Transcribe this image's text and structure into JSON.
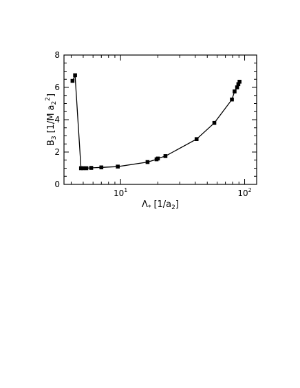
{
  "chart_data": {
    "type": "line",
    "title": "",
    "xlabel": "Λ* [1/a2]",
    "ylabel": "B3 [1/M a2^2]",
    "xscale": "log",
    "xlim": [
      3.5,
      125
    ],
    "ylim": [
      0,
      8
    ],
    "x_ticks": [
      {
        "base": "10",
        "exp": "1"
      },
      {
        "base": "10",
        "exp": "2"
      }
    ],
    "y_ticks": [
      "0",
      "2",
      "4",
      "6",
      "8"
    ],
    "grid": false,
    "legend": "none",
    "series": [
      {
        "color": "#000000",
        "marker": "square",
        "x": [
          4.1,
          4.3,
          4.8,
          5.0,
          5.3,
          5.8,
          7.0,
          9.5,
          16.5,
          19.5,
          20.0,
          23.0,
          41.0,
          57.0,
          79.0,
          83.0,
          87.0,
          89.0,
          91.0
        ],
        "y": [
          6.4,
          6.75,
          1.0,
          1.0,
          1.0,
          1.02,
          1.05,
          1.1,
          1.38,
          1.55,
          1.6,
          1.75,
          2.8,
          3.8,
          5.25,
          5.75,
          6.0,
          6.2,
          6.35
        ]
      }
    ]
  }
}
